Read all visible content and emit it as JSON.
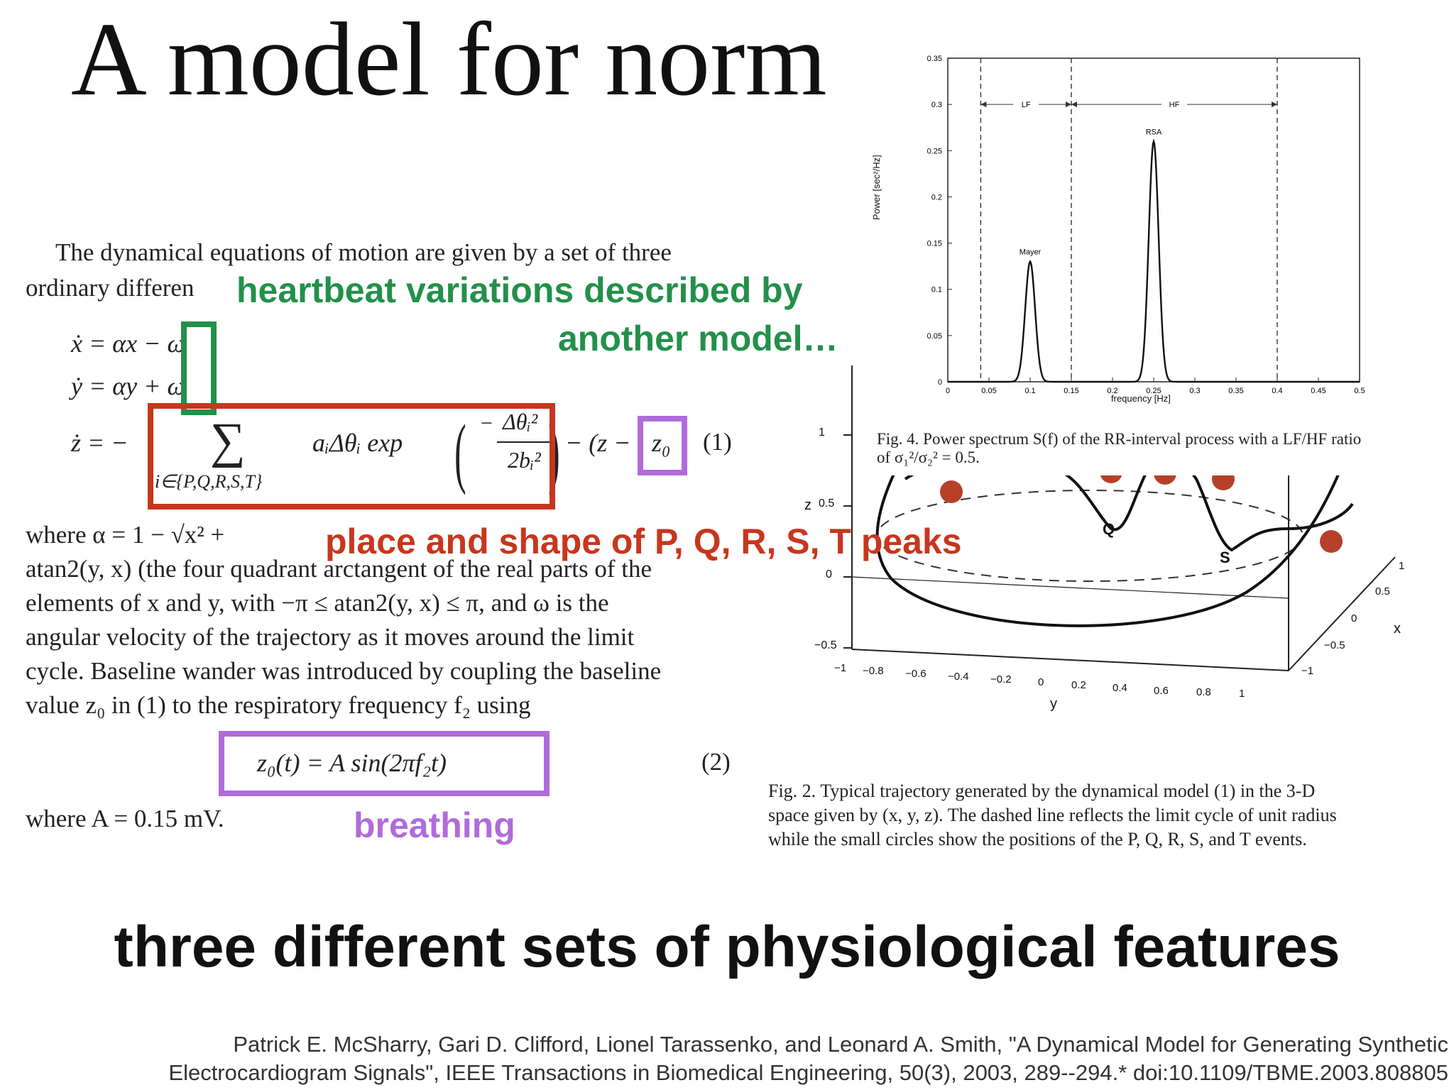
{
  "slide_title": "A model for norm",
  "paper": {
    "intro_line1": "The dynamical equations of motion are given by a set of three",
    "intro_line2": "ordinary differen",
    "eq_x": "ẋ = αx − ω",
    "eq_y": "ẏ = αy + ω",
    "eq_z_prefix": "ż = −",
    "sum_symbol": "∑",
    "sum_index": "i∈{P,Q,R,S,T}",
    "sum_term": "aᵢΔθᵢ exp",
    "frac_num": "Δθᵢ²",
    "frac_den": "2bᵢ²",
    "eq_z_tail": "− (z −",
    "z0": "z₀",
    "eq1_number": "(1)",
    "where_alpha": "where α = 1 − √x² +",
    "line_atan": "atan2(y, x) (the four quadrant arctangent of the real parts of the",
    "line_elements": "elements of x and y, with −π ≤ atan2(y, x) ≤ π, and ω is the",
    "line_angular": "angular velocity of the trajectory as it moves around the limit",
    "line_cycle": "cycle. Baseline wander was introduced by coupling the baseline",
    "line_value": "value z₀ in (1) to the respiratory frequency f₂ using",
    "eq2": "z₀(t) = A sin(2πf₂t)",
    "eq2_number": "(2)",
    "where_A": "where A = 0.15 mV."
  },
  "annotations": {
    "heartbeat_line1": "heartbeat variations described by",
    "heartbeat_line2": "another model…",
    "peaks": "place and shape of P, Q, R, S, T peaks",
    "breathing": "breathing"
  },
  "colors": {
    "green": "#23904a",
    "red": "#c8361d",
    "purple": "#b06bdc"
  },
  "power_spectrum": {
    "ylabel": "Power [sec²/Hz]",
    "xlabel": "frequency [Hz]",
    "band_lf": "LF",
    "band_hf": "HF",
    "label_mayer": "Mayer",
    "label_rsa": "RSA",
    "caption_line1": "Fig. 4.   Power spectrum S(f) of the RR-interval process with a LF/HF ratio",
    "caption_line2": "of σ₁²/σ₂² = 0.5."
  },
  "trajectory": {
    "label_q": "Q",
    "label_s": "S",
    "label_z": "z",
    "label_x": "x",
    "label_y": "y",
    "z_ticks": [
      "1",
      "0.5",
      "0",
      "−0.5"
    ],
    "y_ticks": [
      "−1",
      "−0.8",
      "−0.6",
      "−0.4",
      "−0.2",
      "0",
      "0.2",
      "0.4",
      "0.6",
      "0.8",
      "1"
    ],
    "x_ticks": [
      "1",
      "0.5",
      "0",
      "−0.5",
      "−1"
    ],
    "caption_line1": "Fig. 2.   Typical trajectory generated by the dynamical model (1) in the 3-D",
    "caption_line2": "space given by (x, y, z). The dashed line reflects the limit cycle of unit radius",
    "caption_line3": "while the small circles show the positions of the P, Q, R, S, and T events."
  },
  "chart_data": {
    "type": "line",
    "xlabel": "frequency [Hz]",
    "ylabel": "Power [sec²/Hz]",
    "xlim": [
      0,
      0.5
    ],
    "ylim": [
      0,
      0.35
    ],
    "x_ticks": [
      "0",
      "0.05",
      "0.1",
      "0.15",
      "0.2",
      "0.25",
      "0.3",
      "0.35",
      "0.4",
      "0.45",
      "0.5"
    ],
    "y_ticks": [
      "0",
      "0.05",
      "0.1",
      "0.15",
      "0.2",
      "0.25",
      "0.3",
      "0.35"
    ],
    "peaks": [
      {
        "label": "Mayer",
        "x": 0.1,
        "y": 0.13,
        "width": 0.006
      },
      {
        "label": "RSA",
        "x": 0.25,
        "y": 0.26,
        "width": 0.006
      }
    ],
    "band_lines": [
      0.04,
      0.15,
      0.4
    ],
    "bands": [
      {
        "label": "LF",
        "from": 0.04,
        "to": 0.15
      },
      {
        "label": "HF",
        "from": 0.15,
        "to": 0.4
      }
    ]
  },
  "footer": {
    "heading": "three different sets of physiological features",
    "citation_line1": "Patrick E. McSharry, Gari D. Clifford, Lionel Tarassenko, and Leonard A. Smith, \"A Dynamical Model for Generating Synthetic",
    "citation_line2": "Electrocardiogram Signals\", IEEE Transactions in Biomedical Engineering, 50(3), 2003, 289--294.* doi:10.1109/TBME.2003.808805"
  }
}
